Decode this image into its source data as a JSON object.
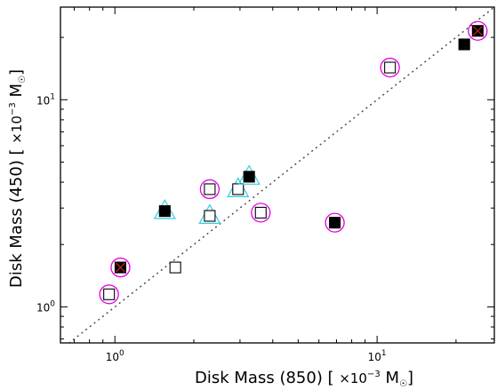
{
  "chart_data": {
    "type": "scatter",
    "xlabel": "Disk Mass (850) [ ×10⁻³ M☉]",
    "ylabel": "Disk Mass (450) [ ×10⁻³ M☉]",
    "xlabel_parts": {
      "main": "Disk Mass (850) [ ",
      "times": "×10",
      "exp": "−3",
      "unit": " M",
      "sun": "☉",
      "close": "]"
    },
    "ylabel_parts": {
      "main": "Disk Mass (450) [ ",
      "times": "×10",
      "exp": "−3",
      "unit": " M",
      "sun": "☉",
      "close": "]"
    },
    "x_scale": "log",
    "y_scale": "log",
    "xlim": [
      0.62,
      28.0
    ],
    "ylim": [
      0.67,
      28.0
    ],
    "x_ticks": [
      {
        "value": 1,
        "base": "10",
        "exp": "0"
      },
      {
        "value": 10,
        "base": "10",
        "exp": "1"
      }
    ],
    "y_ticks": [
      {
        "value": 1,
        "base": "10",
        "exp": "0"
      },
      {
        "value": 10,
        "base": "10",
        "exp": "1"
      }
    ],
    "reference_line": {
      "type": "one-to-one",
      "style": "dotted",
      "color": "#444444"
    },
    "grid": false,
    "points": [
      {
        "x": 0.95,
        "y": 1.15,
        "marker": "open-square",
        "circled": true
      },
      {
        "x": 1.05,
        "y": 1.55,
        "marker": "filled-square-cross",
        "circled": true
      },
      {
        "x": 1.7,
        "y": 1.55,
        "marker": "open-square",
        "circled": false
      },
      {
        "x": 1.55,
        "y": 2.9,
        "marker": "filled-square",
        "triangle": true,
        "circled": false
      },
      {
        "x": 2.3,
        "y": 2.75,
        "marker": "open-square",
        "triangle": true,
        "circled": false
      },
      {
        "x": 2.3,
        "y": 3.7,
        "marker": "open-square",
        "circled": true
      },
      {
        "x": 2.95,
        "y": 3.7,
        "marker": "open-square",
        "triangle": true,
        "circled": false
      },
      {
        "x": 3.25,
        "y": 4.25,
        "marker": "filled-square",
        "triangle": true,
        "circled": false
      },
      {
        "x": 3.6,
        "y": 2.85,
        "marker": "open-square",
        "circled": true
      },
      {
        "x": 6.9,
        "y": 2.55,
        "marker": "filled-square",
        "circled": true
      },
      {
        "x": 11.2,
        "y": 14.3,
        "marker": "open-square",
        "circled": true
      },
      {
        "x": 21.5,
        "y": 18.5,
        "marker": "filled-square",
        "circled": false
      },
      {
        "x": 24.2,
        "y": 21.5,
        "marker": "filled-square-cross",
        "circled": true
      }
    ],
    "colors": {
      "circle": "#e100e1",
      "triangle": "#30d0e0",
      "cross": "#d02020",
      "square": "#000000"
    }
  }
}
